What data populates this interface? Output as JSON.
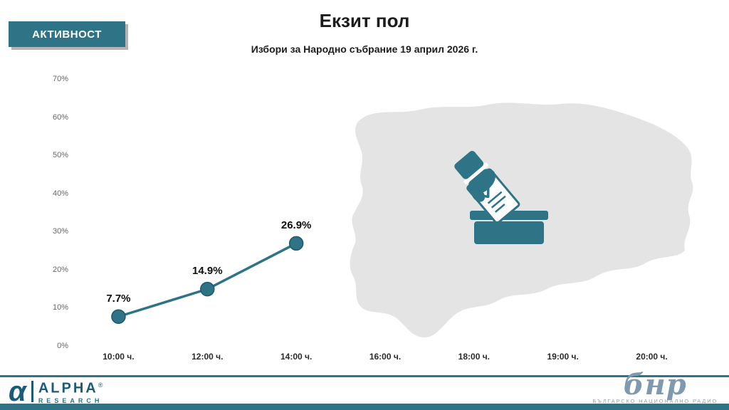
{
  "header": {
    "badge": "АКТИВНОСТ",
    "title": "Екзит пол",
    "subtitle": "Избори за Народно събрание 19 април 2026 г."
  },
  "chart_data": {
    "type": "line",
    "title": "Екзит пол",
    "subtitle": "Избори за Народно събрание 19 април 2026 г.",
    "categories": [
      "10:00 ч.",
      "12:00 ч.",
      "14:00 ч.",
      "16:00 ч.",
      "18:00 ч.",
      "19:00 ч.",
      "20:00 ч."
    ],
    "values": [
      7.7,
      14.9,
      26.9,
      null,
      null,
      null,
      null
    ],
    "point_labels": [
      "7.7%",
      "14.9%",
      "26.9%"
    ],
    "ylim": [
      0,
      70
    ],
    "ytick_labels": [
      "0%",
      "10%",
      "20%",
      "30%",
      "40%",
      "50%",
      "60%",
      "70%"
    ],
    "xlabel": "",
    "ylabel": "",
    "grid": false,
    "legend": false,
    "line_color": "#2E7386",
    "marker_color": "#2E7386",
    "marker_edge": "#1E5968"
  },
  "map": {
    "fill": "#E4E4E4",
    "icon": "ballot-box-with-hand",
    "icon_color": "#2F7386"
  },
  "footer": {
    "accent": "#2E7386",
    "alpha": {
      "glyph": "α",
      "name": "ALPHA",
      "reg": "®",
      "sub": "RESEARCH",
      "color": "#1B5A78"
    },
    "bnr": {
      "script": "бнр",
      "caption": "БЪЛГАРСКО НАЦИОНАЛНО РАДИО",
      "color": "#7F9AB0"
    }
  }
}
